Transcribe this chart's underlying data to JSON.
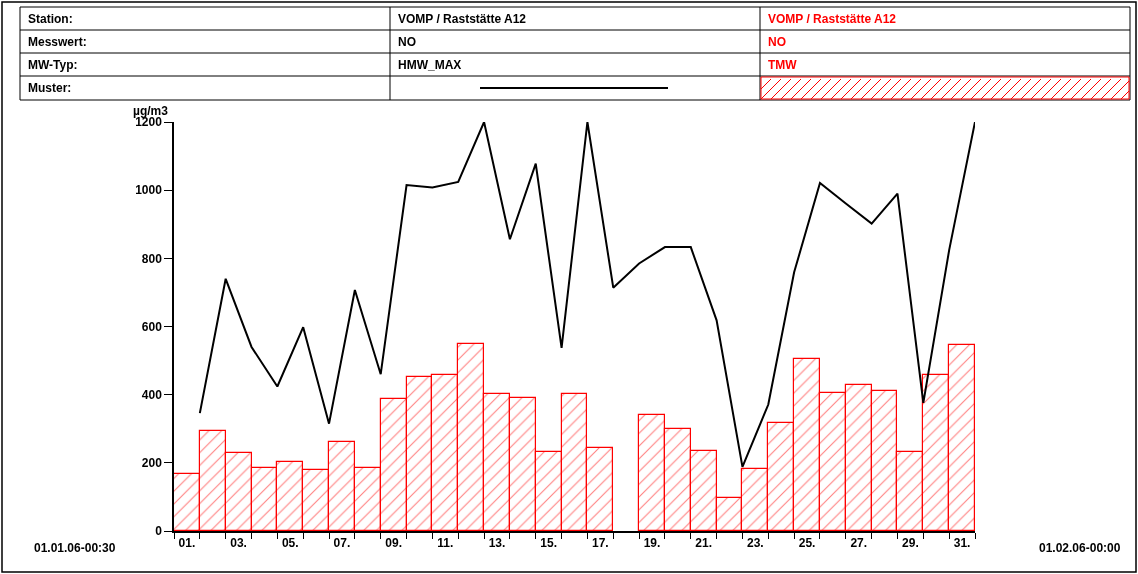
{
  "chart_data": {
    "type": "bar",
    "ylabel": "µg/m3",
    "x": [
      0.5,
      1.5,
      2.5,
      3.5,
      4.5,
      5.5,
      6.5,
      7.5,
      8.5,
      9.5,
      10.5,
      11.5,
      12.5,
      13.5,
      14.5,
      15.5,
      16.5,
      17.5,
      18.5,
      19.5,
      20.5,
      21.5,
      22.5,
      23.5,
      24.5,
      25.5,
      26.5,
      27.5,
      28.5,
      29.5,
      30.5
    ],
    "series": [
      {
        "name": "TMW",
        "color": "#ff0000",
        "values": [
          166,
          293,
          229,
          184,
          202,
          179,
          261,
          184,
          387,
          451,
          457,
          548,
          402,
          391,
          231,
          402,
          244,
          null,
          340,
          300,
          234,
          98,
          182,
          317,
          504,
          405,
          428,
          411,
          232,
          457,
          547
        ]
      },
      {
        "name": "HMW_MAX",
        "type": "line",
        "color": "#000000",
        "x": [
          1,
          2,
          3,
          4,
          5,
          6,
          7,
          8,
          9,
          10,
          11,
          12,
          13,
          14,
          15,
          16,
          17,
          18,
          19,
          20,
          21,
          22,
          23,
          24,
          25,
          26,
          27,
          28,
          29,
          30,
          31
        ],
        "values": [
          346,
          740,
          540,
          424,
          598,
          315,
          707,
          460,
          1015,
          1008,
          1024,
          1200,
          856,
          1078,
          537,
          1200,
          714,
          785,
          833,
          833,
          618,
          188,
          371,
          759,
          1021,
          961,
          902,
          990,
          376,
          824,
          1200
        ]
      }
    ],
    "xlim": [
      0,
      31
    ],
    "xticks": [
      {
        "value": 0.5,
        "label": "01."
      },
      {
        "value": 2.5,
        "label": "03."
      },
      {
        "value": 4.5,
        "label": "05."
      },
      {
        "value": 6.5,
        "label": "07."
      },
      {
        "value": 8.5,
        "label": "09."
      },
      {
        "value": 10.5,
        "label": "11."
      },
      {
        "value": 12.5,
        "label": "13."
      },
      {
        "value": 14.5,
        "label": "15."
      },
      {
        "value": 16.5,
        "label": "17."
      },
      {
        "value": 18.5,
        "label": "19."
      },
      {
        "value": 20.5,
        "label": "21."
      },
      {
        "value": 22.5,
        "label": "23."
      },
      {
        "value": 24.5,
        "label": "25."
      },
      {
        "value": 26.5,
        "label": "27."
      },
      {
        "value": 28.5,
        "label": "29."
      },
      {
        "value": 30.5,
        "label": "31."
      },
      {
        "value": 0,
        "label": null
      },
      {
        "value": 1,
        "label": null
      },
      {
        "value": 2,
        "label": null
      },
      {
        "value": 3,
        "label": null
      },
      {
        "value": 4,
        "label": null
      },
      {
        "value": 5,
        "label": null
      },
      {
        "value": 6,
        "label": null
      },
      {
        "value": 7,
        "label": null
      },
      {
        "value": 8,
        "label": null
      },
      {
        "value": 9,
        "label": null
      },
      {
        "value": 10,
        "label": null
      },
      {
        "value": 11,
        "label": null
      },
      {
        "value": 12,
        "label": null
      },
      {
        "value": 13,
        "label": null
      },
      {
        "value": 14,
        "label": null
      },
      {
        "value": 15,
        "label": null
      },
      {
        "value": 16,
        "label": null
      },
      {
        "value": 17,
        "label": null
      },
      {
        "value": 18,
        "label": null
      },
      {
        "value": 19,
        "label": null
      },
      {
        "value": 20,
        "label": null
      },
      {
        "value": 21,
        "label": null
      },
      {
        "value": 22,
        "label": null
      },
      {
        "value": 23,
        "label": null
      },
      {
        "value": 24,
        "label": null
      },
      {
        "value": 25,
        "label": null
      },
      {
        "value": 26,
        "label": null
      },
      {
        "value": 27,
        "label": null
      },
      {
        "value": 28,
        "label": null
      },
      {
        "value": 29,
        "label": null
      },
      {
        "value": 30,
        "label": null
      },
      {
        "value": 31,
        "label": null
      }
    ],
    "ylim": [
      0,
      1200
    ],
    "yticks": [
      0,
      200,
      400,
      600,
      800,
      1000,
      1200
    ],
    "legend": "top",
    "annotations": [
      "Station:",
      "Messwert:",
      "MW-Typ:",
      "Muster:",
      "VOMP / Raststätte A12",
      "NO",
      "VOMP / Raststätte A12",
      "NO",
      "01.01.06-00:30",
      "01.02.06-00:00"
    ]
  }
}
